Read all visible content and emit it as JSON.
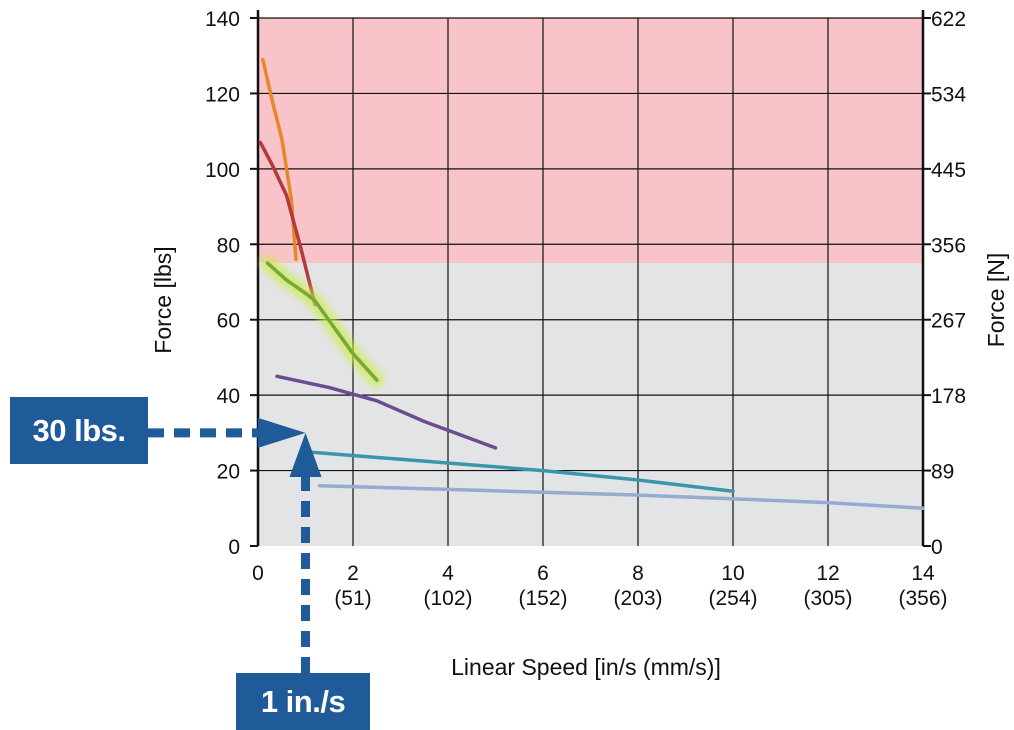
{
  "chart_data": {
    "type": "line",
    "xlabel": "Linear Speed [in/s (mm/s)]",
    "ylabel_left": "Force [lbs]",
    "ylabel_right": "Force [N]",
    "xlim": [
      0,
      14
    ],
    "ylim": [
      0,
      140
    ],
    "grid": true,
    "x_ticks": [
      {
        "value": 0,
        "label": "0",
        "sublabel": ""
      },
      {
        "value": 2,
        "label": "2",
        "sublabel": "(51)"
      },
      {
        "value": 4,
        "label": "4",
        "sublabel": "(102)"
      },
      {
        "value": 6,
        "label": "6",
        "sublabel": "(152)"
      },
      {
        "value": 8,
        "label": "8",
        "sublabel": "(203)"
      },
      {
        "value": 10,
        "label": "10",
        "sublabel": "(254)"
      },
      {
        "value": 12,
        "label": "12",
        "sublabel": "(305)"
      },
      {
        "value": 14,
        "label": "14",
        "sublabel": "(356)"
      }
    ],
    "y_ticks_left": [
      {
        "value": 0,
        "label": "0"
      },
      {
        "value": 20,
        "label": "20"
      },
      {
        "value": 40,
        "label": "40"
      },
      {
        "value": 60,
        "label": "60"
      },
      {
        "value": 80,
        "label": "80"
      },
      {
        "value": 100,
        "label": "100"
      },
      {
        "value": 120,
        "label": "120"
      },
      {
        "value": 140,
        "label": "140"
      }
    ],
    "y_ticks_right": [
      {
        "value": 0,
        "label": "0"
      },
      {
        "value": 20,
        "label": "89"
      },
      {
        "value": 40,
        "label": "178"
      },
      {
        "value": 60,
        "label": "267"
      },
      {
        "value": 80,
        "label": "356"
      },
      {
        "value": 100,
        "label": "445"
      },
      {
        "value": 120,
        "label": "534"
      },
      {
        "value": 140,
        "label": "622"
      }
    ],
    "regions": [
      {
        "from": 75,
        "to": 140,
        "color": "#f8c4c9"
      },
      {
        "from": 0,
        "to": 75,
        "color": "#e3e4e6"
      }
    ],
    "series": [
      {
        "color": "#e8862a",
        "glow": false,
        "points": [
          [
            0.1,
            129
          ],
          [
            0.3,
            118
          ],
          [
            0.5,
            108
          ],
          [
            0.7,
            92
          ],
          [
            0.8,
            76
          ]
        ]
      },
      {
        "color": "#b23a3a",
        "glow": false,
        "points": [
          [
            0.05,
            107
          ],
          [
            0.3,
            101
          ],
          [
            0.6,
            93
          ],
          [
            0.9,
            79
          ],
          [
            1.2,
            64
          ]
        ]
      },
      {
        "color": "#76a83a",
        "glow": true,
        "points": [
          [
            0.2,
            75
          ],
          [
            0.6,
            70.5
          ],
          [
            1.0,
            67
          ],
          [
            1.2,
            65
          ],
          [
            1.6,
            58
          ],
          [
            2.0,
            51
          ],
          [
            2.5,
            44
          ]
        ]
      },
      {
        "color": "#6b4c8f",
        "glow": false,
        "points": [
          [
            0.4,
            45
          ],
          [
            1.5,
            42
          ],
          [
            2.5,
            38.5
          ],
          [
            3.5,
            33
          ],
          [
            5.0,
            26
          ]
        ]
      },
      {
        "color": "#3b96aa",
        "glow": false,
        "points": [
          [
            1.0,
            25
          ],
          [
            3.0,
            23
          ],
          [
            6.0,
            20
          ],
          [
            8.0,
            17.5
          ],
          [
            10.0,
            14.5
          ]
        ]
      },
      {
        "color": "#96aad2",
        "glow": false,
        "points": [
          [
            1.3,
            16
          ],
          [
            4.0,
            15
          ],
          [
            8.0,
            13.5
          ],
          [
            12.0,
            11.5
          ],
          [
            14.0,
            10
          ]
        ]
      }
    ],
    "markers": {
      "force_value": 30,
      "speed_value": 1,
      "color": "#1f5a99"
    }
  },
  "callouts": {
    "force_label": "30 lbs.",
    "speed_label": "1 in./s"
  }
}
